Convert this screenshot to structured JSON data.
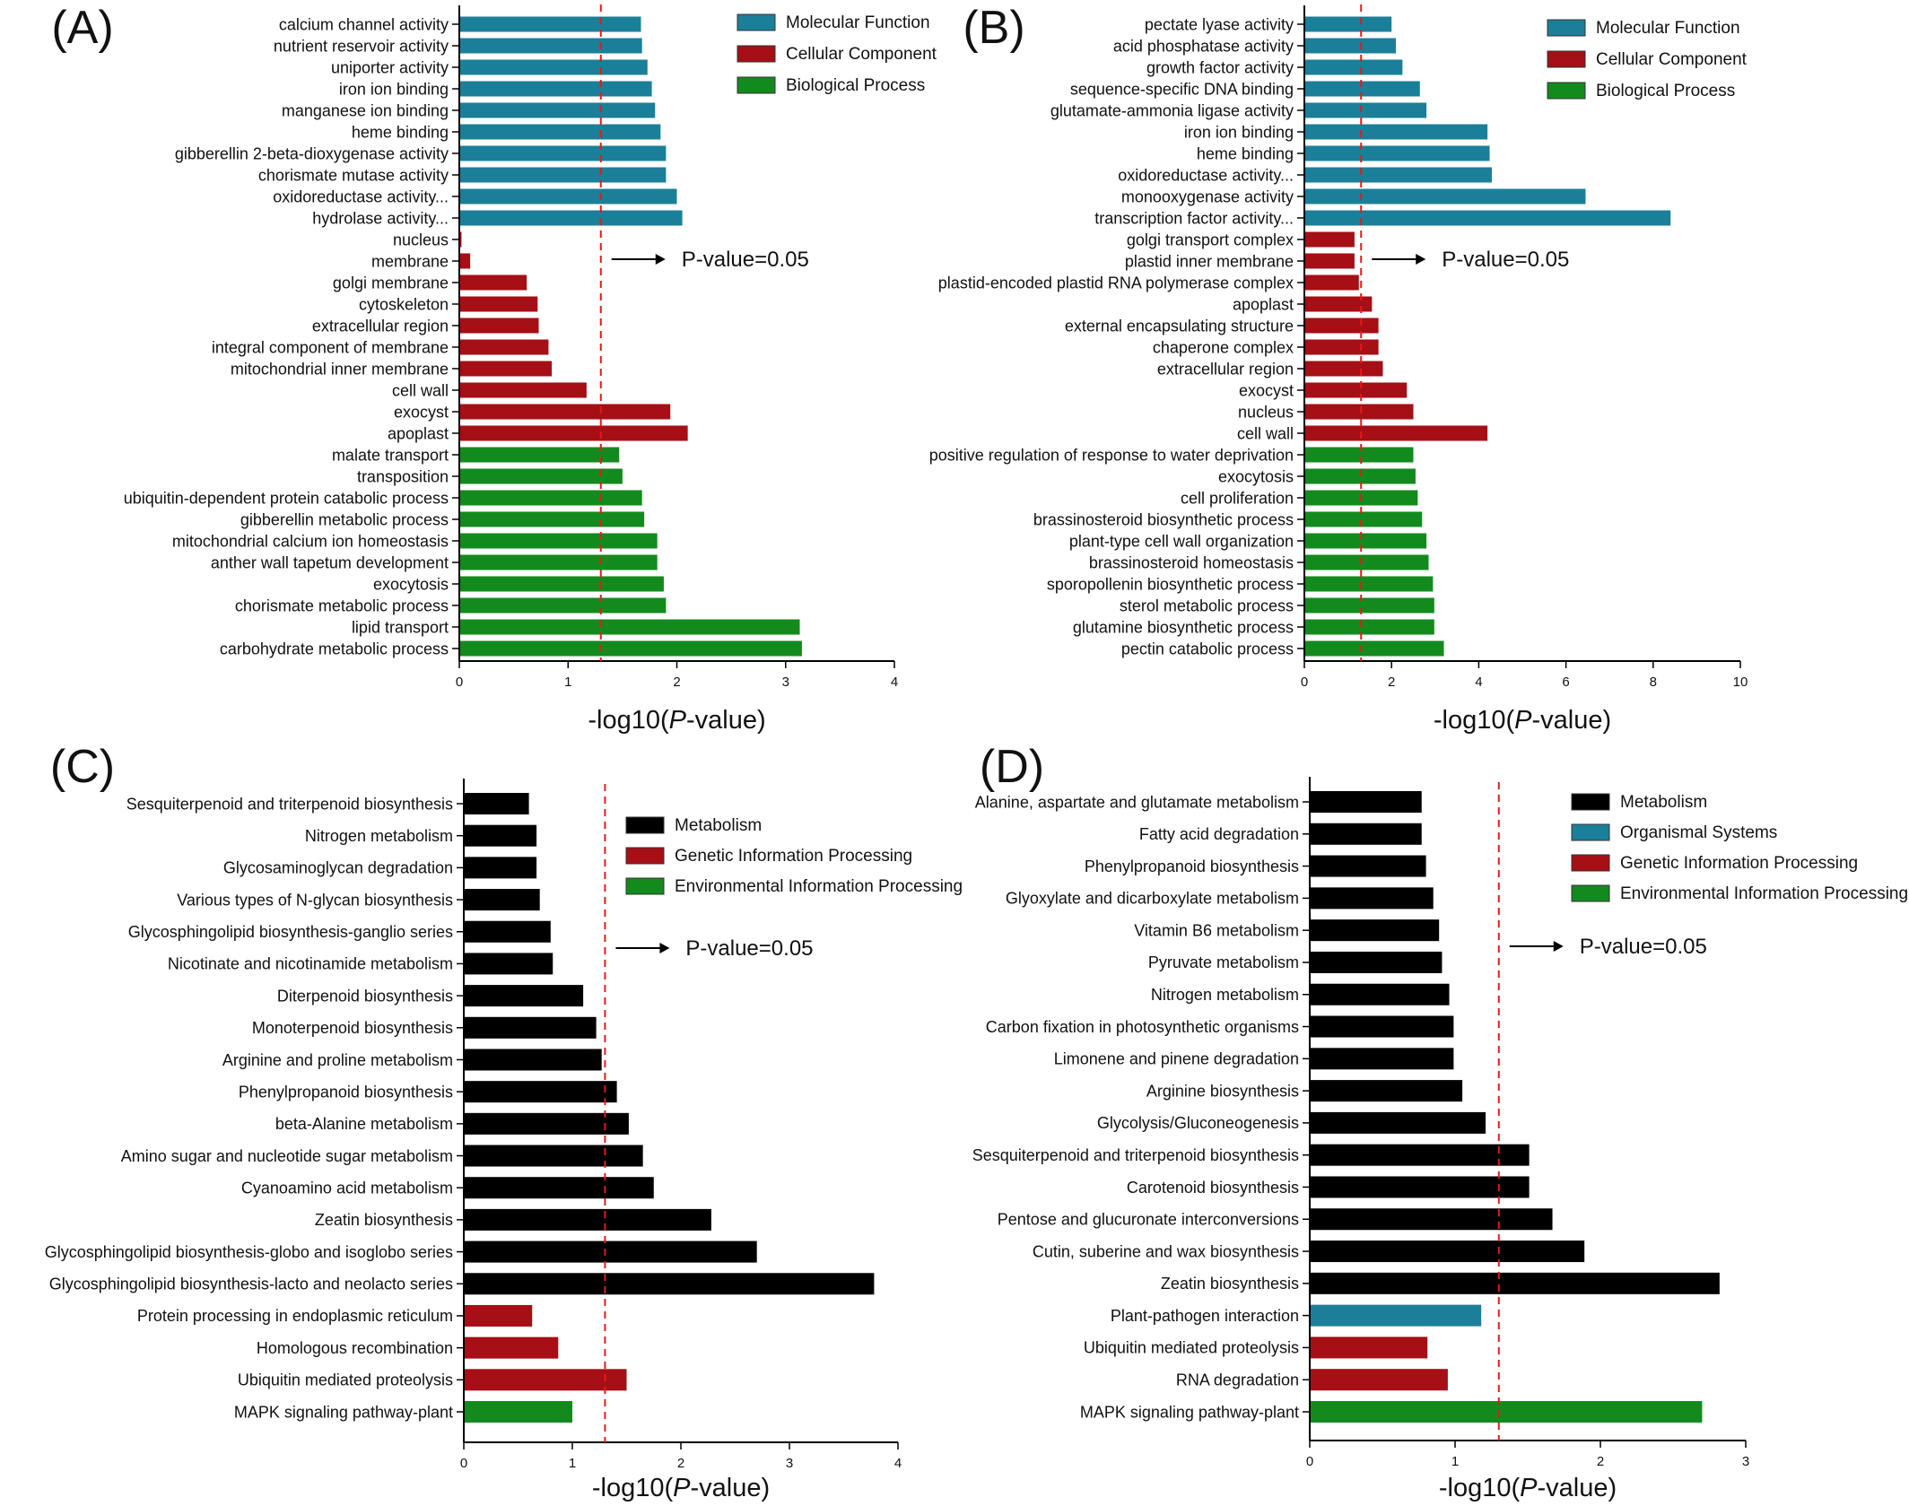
{
  "threshold_annotation": "P-value=0.05",
  "threshold_value": 1.301,
  "xlabel_parts": [
    "-log10(",
    "P",
    "-value)"
  ],
  "panel_letters": [
    "(A)",
    "(B)",
    "(C)",
    "(D)"
  ],
  "chart_data": [
    {
      "panel": "(A)",
      "type": "bar",
      "orientation": "horizontal",
      "xlim": [
        0,
        4
      ],
      "xticks": [
        0,
        1,
        2,
        3,
        4
      ],
      "categories": [
        "calcium channel activity",
        "nutrient reservoir activity",
        "uniporter activity",
        "iron ion binding",
        "manganese ion binding",
        "heme binding",
        "gibberellin 2-beta-dioxygenase activity",
        "chorismate mutase activity",
        "oxidoreductase activity...",
        "hydrolase activity...",
        "nucleus",
        "membrane",
        "golgi membrane",
        "cytoskeleton",
        "extracellular region",
        "integral component of membrane",
        "mitochondrial inner membrane",
        "cell wall",
        "exocyst",
        "apoplast",
        "malate transport",
        "transposition",
        "ubiquitin-dependent protein catabolic process",
        "gibberellin metabolic process",
        "mitochondrial calcium ion homeostasis",
        "anther wall tapetum development",
        "exocytosis",
        "chorismate metabolic process",
        "lipid transport",
        "carbohydrate metabolic process"
      ],
      "values": [
        1.67,
        1.68,
        1.73,
        1.77,
        1.8,
        1.85,
        1.9,
        1.9,
        2.0,
        2.05,
        0.02,
        0.1,
        0.62,
        0.72,
        0.73,
        0.82,
        0.85,
        1.17,
        1.94,
        2.1,
        1.47,
        1.5,
        1.68,
        1.7,
        1.82,
        1.82,
        1.88,
        1.9,
        3.13,
        3.15
      ],
      "groups": [
        "Molecular Function",
        "Molecular Function",
        "Molecular Function",
        "Molecular Function",
        "Molecular Function",
        "Molecular Function",
        "Molecular Function",
        "Molecular Function",
        "Molecular Function",
        "Molecular Function",
        "Cellular Component",
        "Cellular Component",
        "Cellular Component",
        "Cellular Component",
        "Cellular Component",
        "Cellular Component",
        "Cellular Component",
        "Cellular Component",
        "Cellular Component",
        "Cellular Component",
        "Biological Process",
        "Biological Process",
        "Biological Process",
        "Biological Process",
        "Biological Process",
        "Biological Process",
        "Biological Process",
        "Biological Process",
        "Biological Process",
        "Biological Process"
      ],
      "legend": [
        {
          "label": "Molecular Function",
          "color": "#1b7f99"
        },
        {
          "label": "Cellular Component",
          "color": "#a50f15"
        },
        {
          "label": "Biological Process",
          "color": "#138a1e"
        }
      ],
      "legend_position": "top-right"
    },
    {
      "panel": "(B)",
      "type": "bar",
      "orientation": "horizontal",
      "xlim": [
        0,
        10
      ],
      "xticks": [
        0,
        2,
        4,
        6,
        8,
        10
      ],
      "categories": [
        "pectate lyase activity",
        "acid phosphatase activity",
        "growth factor activity",
        "sequence-specific DNA binding",
        "glutamate-ammonia ligase activity",
        "iron ion binding",
        "heme binding",
        "oxidoreductase activity...",
        "monooxygenase activity",
        "transcription factor activity...",
        "golgi transport complex",
        "plastid inner membrane",
        "plastid-encoded plastid RNA polymerase complex",
        "apoplast",
        "external encapsulating structure",
        "chaperone complex",
        "extracellular region",
        "exocyst",
        "nucleus",
        "cell wall",
        "positive regulation of response to water deprivation",
        "exocytosis",
        "cell proliferation",
        "brassinosteroid biosynthetic process",
        "plant-type cell wall organization",
        "brassinosteroid homeostasis",
        "sporopollenin biosynthetic process",
        "sterol metabolic process",
        "glutamine biosynthetic process",
        "pectin catabolic process"
      ],
      "values": [
        2.0,
        2.1,
        2.25,
        2.65,
        2.8,
        4.2,
        4.25,
        4.3,
        6.45,
        8.4,
        1.15,
        1.15,
        1.25,
        1.55,
        1.7,
        1.7,
        1.8,
        2.35,
        2.5,
        4.2,
        2.5,
        2.55,
        2.6,
        2.7,
        2.8,
        2.85,
        2.95,
        2.98,
        2.98,
        3.2
      ],
      "groups": [
        "Molecular Function",
        "Molecular Function",
        "Molecular Function",
        "Molecular Function",
        "Molecular Function",
        "Molecular Function",
        "Molecular Function",
        "Molecular Function",
        "Molecular Function",
        "Molecular Function",
        "Cellular Component",
        "Cellular Component",
        "Cellular Component",
        "Cellular Component",
        "Cellular Component",
        "Cellular Component",
        "Cellular Component",
        "Cellular Component",
        "Cellular Component",
        "Cellular Component",
        "Biological Process",
        "Biological Process",
        "Biological Process",
        "Biological Process",
        "Biological Process",
        "Biological Process",
        "Biological Process",
        "Biological Process",
        "Biological Process",
        "Biological Process"
      ],
      "legend": [
        {
          "label": "Molecular Function",
          "color": "#1b7f99"
        },
        {
          "label": "Cellular Component",
          "color": "#a50f15"
        },
        {
          "label": "Biological Process",
          "color": "#138a1e"
        }
      ],
      "legend_position": "top-right"
    },
    {
      "panel": "(C)",
      "type": "bar",
      "orientation": "horizontal",
      "xlim": [
        0,
        4
      ],
      "xticks": [
        0,
        1,
        2,
        3,
        4
      ],
      "categories": [
        "Sesquiterpenoid and triterpenoid biosynthesis",
        "Nitrogen metabolism",
        "Glycosaminoglycan degradation",
        "Various types of N-glycan biosynthesis",
        "Glycosphingolipid biosynthesis-ganglio series",
        "Nicotinate and nicotinamide metabolism",
        "Diterpenoid biosynthesis",
        "Monoterpenoid biosynthesis",
        "Arginine and proline metabolism",
        "Phenylpropanoid biosynthesis",
        "beta-Alanine metabolism",
        "Amino sugar and nucleotide sugar metabolism",
        "Cyanoamino acid metabolism",
        "Zeatin biosynthesis",
        "Glycosphingolipid biosynthesis-globo and isoglobo series",
        "Glycosphingolipid biosynthesis-lacto and neolacto series",
        "Protein processing in endoplasmic reticulum",
        "Homologous recombination",
        "Ubiquitin mediated proteolysis",
        "MAPK signaling pathway-plant"
      ],
      "values": [
        0.6,
        0.67,
        0.67,
        0.7,
        0.8,
        0.82,
        1.1,
        1.22,
        1.27,
        1.41,
        1.52,
        1.65,
        1.75,
        2.28,
        2.7,
        3.78,
        0.63,
        0.87,
        1.5,
        1.0
      ],
      "groups": [
        "Metabolism",
        "Metabolism",
        "Metabolism",
        "Metabolism",
        "Metabolism",
        "Metabolism",
        "Metabolism",
        "Metabolism",
        "Metabolism",
        "Metabolism",
        "Metabolism",
        "Metabolism",
        "Metabolism",
        "Metabolism",
        "Metabolism",
        "Metabolism",
        "Genetic Information Processing",
        "Genetic Information Processing",
        "Genetic Information Processing",
        "Environmental Information Processing"
      ],
      "legend": [
        {
          "label": "Metabolism",
          "color": "#000000"
        },
        {
          "label": "Genetic Information Processing",
          "color": "#a50f15"
        },
        {
          "label": "Environmental Information Processing",
          "color": "#138a1e"
        }
      ],
      "legend_position": "top-right"
    },
    {
      "panel": "(D)",
      "type": "bar",
      "orientation": "horizontal",
      "xlim": [
        0,
        3
      ],
      "xticks": [
        0,
        1,
        2,
        3
      ],
      "categories": [
        "Alanine, aspartate and glutamate metabolism",
        "Fatty acid degradation",
        "Phenylpropanoid biosynthesis",
        "Glyoxylate and dicarboxylate metabolism",
        "Vitamin B6 metabolism",
        "Pyruvate metabolism",
        "Nitrogen metabolism",
        "Carbon fixation in photosynthetic organisms",
        "Limonene and pinene degradation",
        "Arginine biosynthesis",
        "Glycolysis/Gluconeogenesis",
        "Sesquiterpenoid and triterpenoid biosynthesis",
        "Carotenoid biosynthesis",
        "Pentose and glucuronate interconversions",
        "Cutin, suberine and wax biosynthesis",
        "Zeatin biosynthesis",
        "Plant-pathogen interaction",
        "Ubiquitin mediated proteolysis",
        "RNA degradation",
        "MAPK signaling pathway-plant"
      ],
      "values": [
        0.77,
        0.77,
        0.8,
        0.85,
        0.89,
        0.91,
        0.96,
        0.99,
        0.99,
        1.05,
        1.21,
        1.51,
        1.51,
        1.67,
        1.89,
        2.82,
        1.18,
        0.81,
        0.95,
        2.7
      ],
      "groups": [
        "Metabolism",
        "Metabolism",
        "Metabolism",
        "Metabolism",
        "Metabolism",
        "Metabolism",
        "Metabolism",
        "Metabolism",
        "Metabolism",
        "Metabolism",
        "Metabolism",
        "Metabolism",
        "Metabolism",
        "Metabolism",
        "Metabolism",
        "Metabolism",
        "Organismal Systems",
        "Genetic Information Processing",
        "Genetic Information Processing",
        "Environmental Information Processing"
      ],
      "legend": [
        {
          "label": "Metabolism",
          "color": "#000000"
        },
        {
          "label": "Organismal Systems",
          "color": "#1b7f99"
        },
        {
          "label": "Genetic Information Processing",
          "color": "#a50f15"
        },
        {
          "label": "Environmental Information Processing",
          "color": "#138a1e"
        }
      ],
      "legend_position": "top-right"
    }
  ]
}
